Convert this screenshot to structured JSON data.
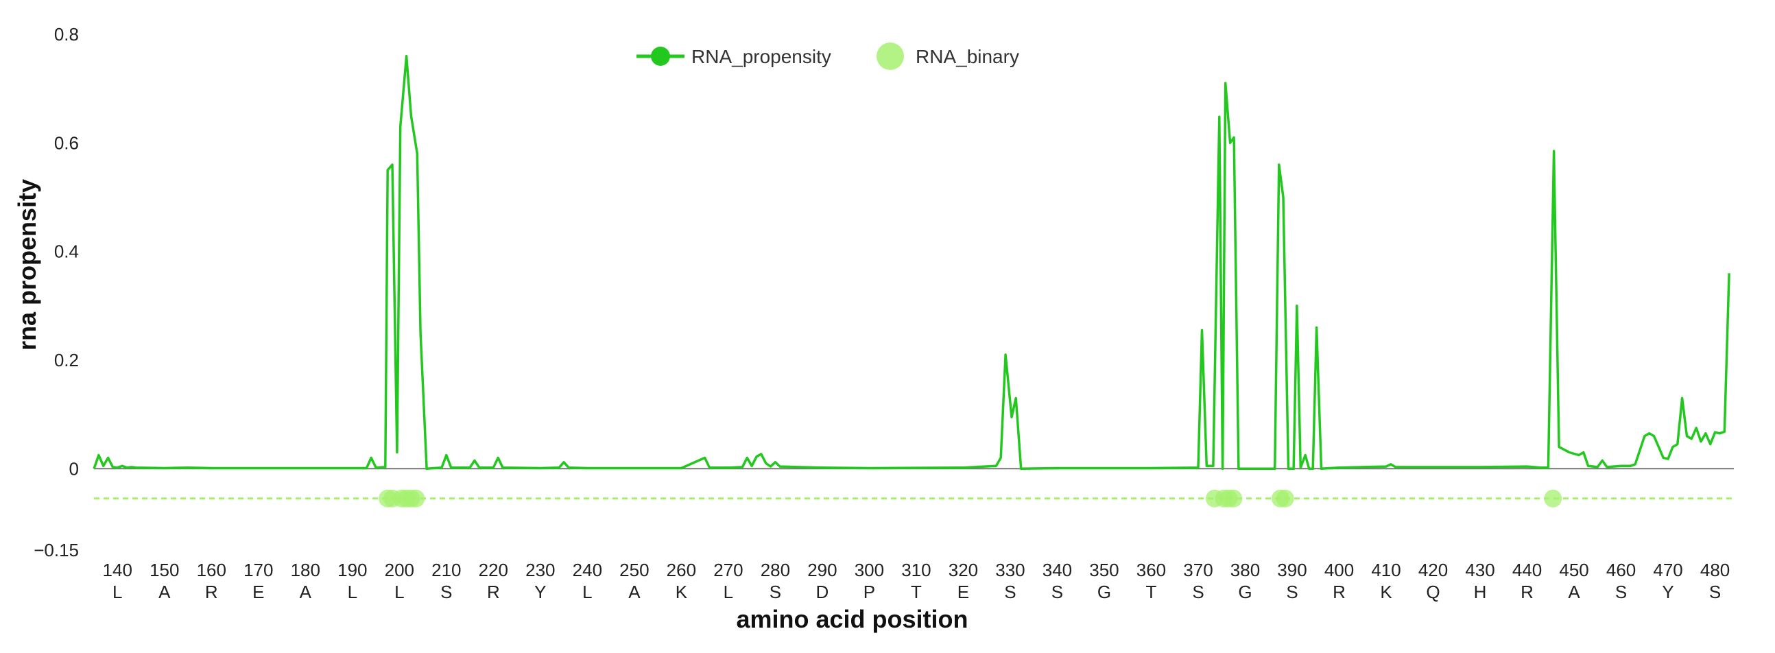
{
  "chart_data": {
    "type": "line",
    "xlabel": "amino acid position",
    "ylabel": "rna propensity",
    "xlim": [
      135,
      484
    ],
    "ylim": [
      -0.15,
      0.8
    ],
    "yticks": [
      {
        "value": 0.8,
        "label": "0.8"
      },
      {
        "value": 0.6,
        "label": "0.6"
      },
      {
        "value": 0.4,
        "label": "0.4"
      },
      {
        "value": 0.2,
        "label": "0.2"
      },
      {
        "value": 0,
        "label": "0"
      },
      {
        "value": -0.15,
        "label": "−0.15"
      }
    ],
    "xticks": [
      {
        "value": 140,
        "label": "140",
        "residue": "L"
      },
      {
        "value": 150,
        "label": "150",
        "residue": "A"
      },
      {
        "value": 160,
        "label": "160",
        "residue": "R"
      },
      {
        "value": 170,
        "label": "170",
        "residue": "E"
      },
      {
        "value": 180,
        "label": "180",
        "residue": "A"
      },
      {
        "value": 190,
        "label": "190",
        "residue": "L"
      },
      {
        "value": 200,
        "label": "200",
        "residue": "L"
      },
      {
        "value": 210,
        "label": "210",
        "residue": "S"
      },
      {
        "value": 220,
        "label": "220",
        "residue": "R"
      },
      {
        "value": 230,
        "label": "230",
        "residue": "Y"
      },
      {
        "value": 240,
        "label": "240",
        "residue": "L"
      },
      {
        "value": 250,
        "label": "250",
        "residue": "A"
      },
      {
        "value": 260,
        "label": "260",
        "residue": "K"
      },
      {
        "value": 270,
        "label": "270",
        "residue": "L"
      },
      {
        "value": 280,
        "label": "280",
        "residue": "S"
      },
      {
        "value": 290,
        "label": "290",
        "residue": "D"
      },
      {
        "value": 300,
        "label": "300",
        "residue": "P"
      },
      {
        "value": 310,
        "label": "310",
        "residue": "T"
      },
      {
        "value": 320,
        "label": "320",
        "residue": "E"
      },
      {
        "value": 330,
        "label": "330",
        "residue": "S"
      },
      {
        "value": 340,
        "label": "340",
        "residue": "S"
      },
      {
        "value": 350,
        "label": "350",
        "residue": "G"
      },
      {
        "value": 360,
        "label": "360",
        "residue": "T"
      },
      {
        "value": 370,
        "label": "370",
        "residue": "S"
      },
      {
        "value": 380,
        "label": "380",
        "residue": "G"
      },
      {
        "value": 390,
        "label": "390",
        "residue": "S"
      },
      {
        "value": 400,
        "label": "400",
        "residue": "R"
      },
      {
        "value": 410,
        "label": "410",
        "residue": "K"
      },
      {
        "value": 420,
        "label": "420",
        "residue": "Q"
      },
      {
        "value": 430,
        "label": "430",
        "residue": "H"
      },
      {
        "value": 440,
        "label": "440",
        "residue": "R"
      },
      {
        "value": 450,
        "label": "450",
        "residue": "A"
      },
      {
        "value": 460,
        "label": "460",
        "residue": "S"
      },
      {
        "value": 470,
        "label": "470",
        "residue": "Y"
      },
      {
        "value": 480,
        "label": "480",
        "residue": "S"
      }
    ],
    "legend": {
      "placement": "top-center"
    },
    "grid": false,
    "series": [
      {
        "name": "RNA_propensity",
        "type": "line",
        "color": "#22c81e",
        "points": [
          [
            135,
            0.0
          ],
          [
            136,
            0.025
          ],
          [
            137,
            0.005
          ],
          [
            138,
            0.02
          ],
          [
            139,
            0.003
          ],
          [
            140,
            0.002
          ],
          [
            141,
            0.005
          ],
          [
            142,
            0.002
          ],
          [
            143,
            0.003
          ],
          [
            144,
            0.002
          ],
          [
            150,
            0.001
          ],
          [
            155,
            0.002
          ],
          [
            160,
            0.001
          ],
          [
            180,
            0.001
          ],
          [
            193,
            0.001
          ],
          [
            194,
            0.02
          ],
          [
            195,
            0.002
          ],
          [
            197,
            0.003
          ],
          [
            197.5,
            0.55
          ],
          [
            198.5,
            0.56
          ],
          [
            199.5,
            0.03
          ],
          [
            200.2,
            0.63
          ],
          [
            201.5,
            0.76
          ],
          [
            202.5,
            0.65
          ],
          [
            203.8,
            0.58
          ],
          [
            204.5,
            0.25
          ],
          [
            205.8,
            0.0
          ],
          [
            209,
            0.002
          ],
          [
            210,
            0.025
          ],
          [
            211,
            0.002
          ],
          [
            215,
            0.002
          ],
          [
            216,
            0.015
          ],
          [
            217,
            0.002
          ],
          [
            220,
            0.002
          ],
          [
            221,
            0.02
          ],
          [
            222,
            0.002
          ],
          [
            230,
            0.001
          ],
          [
            234,
            0.002
          ],
          [
            235,
            0.012
          ],
          [
            236,
            0.002
          ],
          [
            240,
            0.001
          ],
          [
            260,
            0.001
          ],
          [
            265,
            0.02
          ],
          [
            266,
            0.002
          ],
          [
            270,
            0.002
          ],
          [
            273,
            0.003
          ],
          [
            274,
            0.02
          ],
          [
            275,
            0.005
          ],
          [
            276,
            0.022
          ],
          [
            277,
            0.027
          ],
          [
            278,
            0.01
          ],
          [
            279,
            0.004
          ],
          [
            280,
            0.012
          ],
          [
            281,
            0.004
          ],
          [
            285,
            0.003
          ],
          [
            290,
            0.002
          ],
          [
            300,
            0.001
          ],
          [
            320,
            0.002
          ],
          [
            327,
            0.005
          ],
          [
            328,
            0.02
          ],
          [
            329,
            0.21
          ],
          [
            330.3,
            0.095
          ],
          [
            331.2,
            0.13
          ],
          [
            332.3,
            0.0
          ],
          [
            340,
            0.001
          ],
          [
            360,
            0.001
          ],
          [
            370,
            0.002
          ],
          [
            370.8,
            0.255
          ],
          [
            371.8,
            0.005
          ],
          [
            373.2,
            0.005
          ],
          [
            374.5,
            0.648
          ],
          [
            375.2,
            0.0
          ],
          [
            375.8,
            0.71
          ],
          [
            376.8,
            0.6
          ],
          [
            377.6,
            0.61
          ],
          [
            378.6,
            0.0
          ],
          [
            385,
            0.0
          ],
          [
            386.3,
            0.0
          ],
          [
            387.2,
            0.56
          ],
          [
            388.1,
            0.5
          ],
          [
            389.2,
            0.0
          ],
          [
            390.3,
            0.0
          ],
          [
            391.0,
            0.3
          ],
          [
            391.8,
            0.002
          ],
          [
            392.8,
            0.025
          ],
          [
            393.6,
            0.0
          ],
          [
            394.4,
            0.0
          ],
          [
            395.2,
            0.26
          ],
          [
            396.2,
            0.0
          ],
          [
            400,
            0.002
          ],
          [
            405,
            0.003
          ],
          [
            410,
            0.004
          ],
          [
            411,
            0.008
          ],
          [
            412,
            0.003
          ],
          [
            420,
            0.003
          ],
          [
            430,
            0.003
          ],
          [
            440,
            0.004
          ],
          [
            443,
            0.002
          ],
          [
            444.5,
            0.002
          ],
          [
            445.7,
            0.585
          ],
          [
            446.8,
            0.04
          ],
          [
            449,
            0.03
          ],
          [
            451,
            0.025
          ],
          [
            452,
            0.03
          ],
          [
            453,
            0.005
          ],
          [
            455,
            0.003
          ],
          [
            456,
            0.015
          ],
          [
            457,
            0.003
          ],
          [
            460,
            0.005
          ],
          [
            462,
            0.005
          ],
          [
            463,
            0.008
          ],
          [
            465,
            0.06
          ],
          [
            466,
            0.065
          ],
          [
            467,
            0.06
          ],
          [
            468,
            0.04
          ],
          [
            469,
            0.02
          ],
          [
            470,
            0.018
          ],
          [
            471,
            0.04
          ],
          [
            472,
            0.045
          ],
          [
            473,
            0.13
          ],
          [
            474,
            0.06
          ],
          [
            475,
            0.055
          ],
          [
            476,
            0.075
          ],
          [
            477,
            0.05
          ],
          [
            478,
            0.065
          ],
          [
            479,
            0.045
          ],
          [
            480,
            0.067
          ],
          [
            481,
            0.065
          ],
          [
            482,
            0.068
          ],
          [
            483,
            0.36
          ]
        ]
      },
      {
        "name": "RNA_binary",
        "type": "scatter",
        "color": "#a6f06e",
        "baseline": -0.055,
        "x": [
          197.5,
          198.5,
          200.5,
          201.5,
          202.5,
          203.5,
          373.5,
          375.5,
          376.5,
          377.5,
          387.5,
          388.5,
          445.5
        ]
      }
    ]
  }
}
